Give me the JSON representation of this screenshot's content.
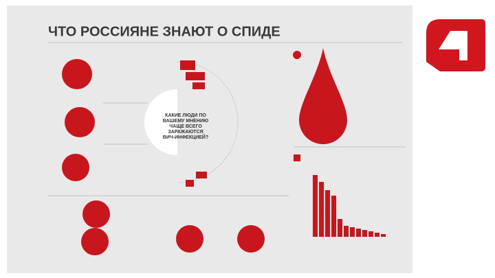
{
  "header": {
    "title": "ЧТО РОССИЯНЕ ЗНАЮТ О СПИДЕ"
  },
  "center": {
    "question": [
      "КАКИЕ ЛЮДИ ПО",
      "ВАШЕМУ МНЕНИЮ",
      "ЧАЩЕ ВСЕГО",
      "ЗАРАЖАЮТСЯ",
      "ВИЧ-ИНФЕКЦИЕЙ?"
    ]
  },
  "chart_data": {
    "type": "bar",
    "values": [
      45,
      40,
      34,
      30,
      13,
      8,
      7,
      6,
      5,
      4,
      3,
      2
    ],
    "color": "#c8161d",
    "ylim": [
      0,
      50
    ]
  }
}
